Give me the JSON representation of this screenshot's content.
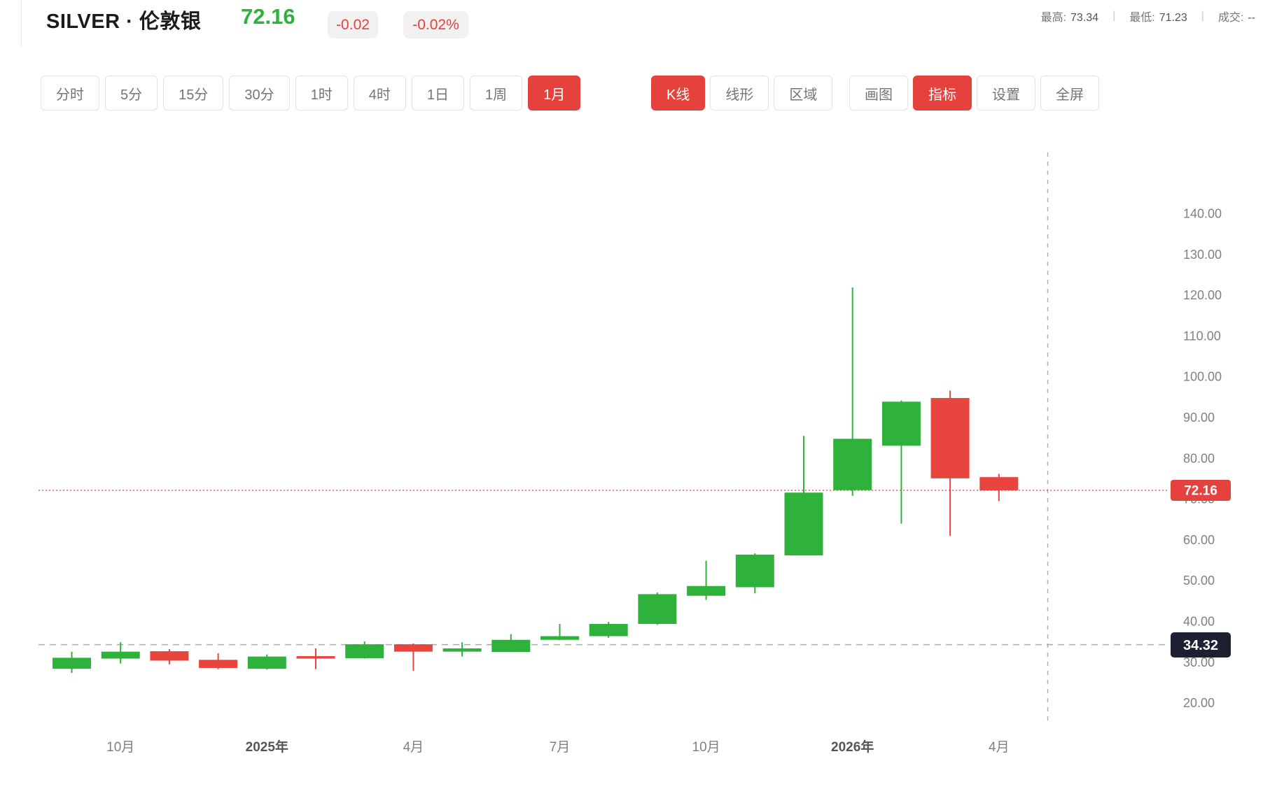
{
  "header": {
    "symbol": "SILVER · 伦敦银",
    "price": "72.16",
    "change": "-0.02",
    "change_pct": "-0.02%",
    "stats": [
      {
        "label": "最高:",
        "value": "73.34"
      },
      {
        "label": "最低:",
        "value": "71.23"
      },
      {
        "label": "成交:",
        "value": "--"
      }
    ]
  },
  "toolbar": {
    "timeframes": [
      {
        "name": "time-share",
        "label": "分时",
        "active": false
      },
      {
        "name": "5min",
        "label": "5分",
        "active": false
      },
      {
        "name": "15min",
        "label": "15分",
        "active": false
      },
      {
        "name": "30min",
        "label": "30分",
        "active": false
      },
      {
        "name": "1hour",
        "label": "1时",
        "active": false
      },
      {
        "name": "4hour",
        "label": "4时",
        "active": false
      },
      {
        "name": "1day",
        "label": "1日",
        "active": false
      },
      {
        "name": "1week",
        "label": "1周",
        "active": false
      },
      {
        "name": "1month",
        "label": "1月",
        "active": true
      }
    ],
    "chart_types": [
      {
        "name": "candle",
        "label": "K线",
        "active": true
      },
      {
        "name": "line",
        "label": "线形",
        "active": false
      },
      {
        "name": "area",
        "label": "区域",
        "active": false
      }
    ],
    "tools": [
      {
        "name": "draw",
        "label": "画图",
        "active": false
      },
      {
        "name": "indicator",
        "label": "指标",
        "active": true
      },
      {
        "name": "settings",
        "label": "设置",
        "active": false
      },
      {
        "name": "fullscreen",
        "label": "全屏",
        "active": false
      }
    ]
  },
  "chart_data": {
    "type": "candlestick",
    "timeframe": "1month",
    "ylim": [
      14.9,
      155
    ],
    "y_ticks": [
      140,
      130,
      120,
      110,
      100,
      90,
      80,
      70,
      60,
      50,
      40,
      30,
      20
    ],
    "y_tick_labels": [
      "140.00",
      "130.00",
      "120.00",
      "110.00",
      "100.00",
      "90.00",
      "80.00",
      "70.00",
      "60.00",
      "50.00",
      "40.00",
      "30.00",
      "20.00"
    ],
    "candles": [
      {
        "t": "2024-09",
        "o": 28.4,
        "h": 32.6,
        "l": 27.4,
        "c": 31.1
      },
      {
        "t": "2024-10",
        "o": 30.9,
        "h": 34.9,
        "l": 29.7,
        "c": 32.6
      },
      {
        "t": "2024-11",
        "o": 32.7,
        "h": 33.2,
        "l": 29.5,
        "c": 30.4
      },
      {
        "t": "2024-12",
        "o": 30.6,
        "h": 32.2,
        "l": 28.3,
        "c": 28.6
      },
      {
        "t": "2025-01",
        "o": 28.4,
        "h": 31.9,
        "l": 28.2,
        "c": 31.4
      },
      {
        "t": "2025-02",
        "o": 31.5,
        "h": 33.4,
        "l": 28.3,
        "c": 30.9
      },
      {
        "t": "2025-03",
        "o": 31.0,
        "h": 35.1,
        "l": 30.9,
        "c": 34.4
      },
      {
        "t": "2025-04",
        "o": 34.4,
        "h": 34.6,
        "l": 27.9,
        "c": 32.6
      },
      {
        "t": "2025-05",
        "o": 32.6,
        "h": 34.9,
        "l": 31.4,
        "c": 33.4
      },
      {
        "t": "2025-06",
        "o": 32.5,
        "h": 36.9,
        "l": 32.5,
        "c": 35.5
      },
      {
        "t": "2025-07",
        "o": 35.5,
        "h": 39.4,
        "l": 35.4,
        "c": 36.4
      },
      {
        "t": "2025-08",
        "o": 36.4,
        "h": 39.9,
        "l": 36.0,
        "c": 39.4
      },
      {
        "t": "2025-09",
        "o": 39.4,
        "h": 47.1,
        "l": 39.2,
        "c": 46.7
      },
      {
        "t": "2025-10",
        "o": 46.3,
        "h": 54.9,
        "l": 45.3,
        "c": 48.7
      },
      {
        "t": "2025-11",
        "o": 48.4,
        "h": 56.7,
        "l": 46.9,
        "c": 56.4
      },
      {
        "t": "2025-12",
        "o": 56.2,
        "h": 85.5,
        "l": 56.2,
        "c": 71.6
      },
      {
        "t": "2026-01",
        "o": 72.2,
        "h": 121.9,
        "l": 70.8,
        "c": 84.8
      },
      {
        "t": "2026-02",
        "o": 83.1,
        "h": 94.2,
        "l": 64.0,
        "c": 93.9
      },
      {
        "t": "2026-03",
        "o": 94.8,
        "h": 96.6,
        "l": 61.0,
        "c": 75.1
      },
      {
        "t": "2026-04",
        "o": 75.4,
        "h": 76.2,
        "l": 69.5,
        "c": 72.16
      }
    ],
    "x_labels": [
      {
        "text": "10月",
        "index": 1,
        "bold": false
      },
      {
        "text": "2025年",
        "index": 4,
        "bold": true
      },
      {
        "text": "4月",
        "index": 7,
        "bold": false
      },
      {
        "text": "7月",
        "index": 10,
        "bold": false
      },
      {
        "text": "10月",
        "index": 13,
        "bold": false
      },
      {
        "text": "2026年",
        "index": 16,
        "bold": true
      },
      {
        "text": "4月",
        "index": 19,
        "bold": false
      }
    ],
    "last_price": "72.16",
    "last_price_value": 72.16,
    "crosshair_price": "34.32",
    "crosshair_price_value": 34.32,
    "crosshair_x_slot": 20,
    "legend_position": "none",
    "grid": "off"
  },
  "colors": {
    "up": "#2fb23c",
    "down": "#e8453e",
    "accent_red": "#e5413d",
    "price_green": "#2fb23c",
    "badge_dark": "#1c2030",
    "axis_text": "#808080",
    "axis_text_bold": "#555555",
    "dash_line": "#aaaaaa",
    "badge_text": "#ffffff"
  }
}
